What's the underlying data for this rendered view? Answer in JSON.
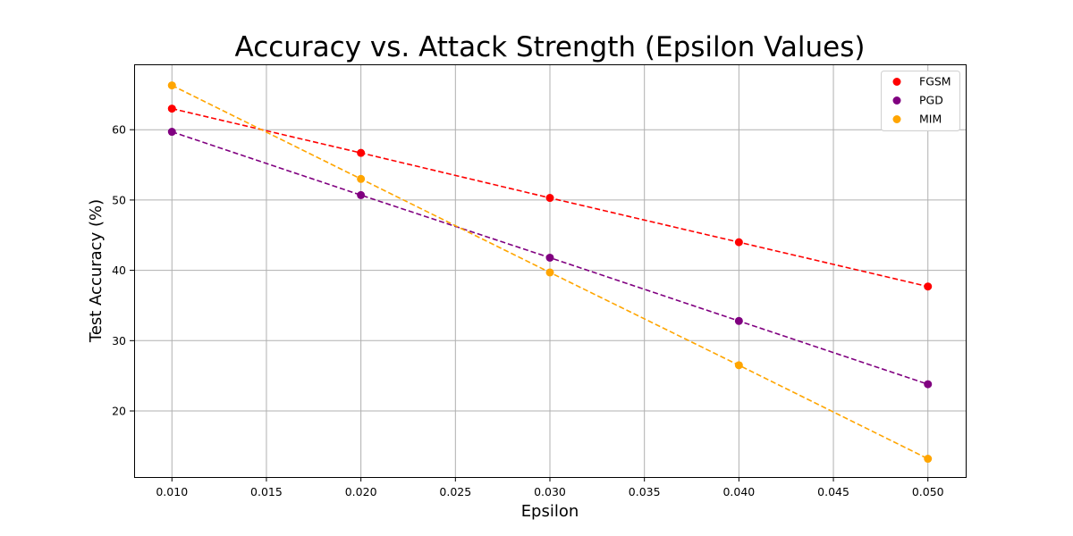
{
  "chart_data": {
    "type": "scatter",
    "title": "Accuracy vs. Attack Strength (Epsilon Values)",
    "xlabel": "Epsilon",
    "ylabel": "Test Accuracy (%)",
    "xlim": [
      0.008,
      0.052
    ],
    "ylim": [
      10.6,
      69.3
    ],
    "x_ticks": [
      0.01,
      0.015,
      0.02,
      0.025,
      0.03,
      0.035,
      0.04,
      0.045,
      0.05
    ],
    "x_tick_labels": [
      "0.010",
      "0.015",
      "0.020",
      "0.025",
      "0.030",
      "0.035",
      "0.040",
      "0.045",
      "0.050"
    ],
    "y_ticks": [
      20,
      30,
      40,
      50,
      60
    ],
    "y_tick_labels": [
      "20",
      "30",
      "40",
      "50",
      "60"
    ],
    "grid": true,
    "legend_position": "top-right",
    "line_style": "dashed",
    "x": [
      0.01,
      0.02,
      0.03,
      0.04,
      0.05
    ],
    "series": [
      {
        "name": "FGSM",
        "color": "#ff0000",
        "values": [
          63.0,
          56.7,
          50.3,
          44.0,
          37.7
        ]
      },
      {
        "name": "PGD",
        "color": "#800080",
        "values": [
          59.7,
          50.7,
          41.8,
          32.8,
          23.8
        ]
      },
      {
        "name": "MIM",
        "color": "#ffa500",
        "values": [
          66.3,
          53.0,
          39.7,
          26.5,
          13.2
        ]
      }
    ]
  }
}
